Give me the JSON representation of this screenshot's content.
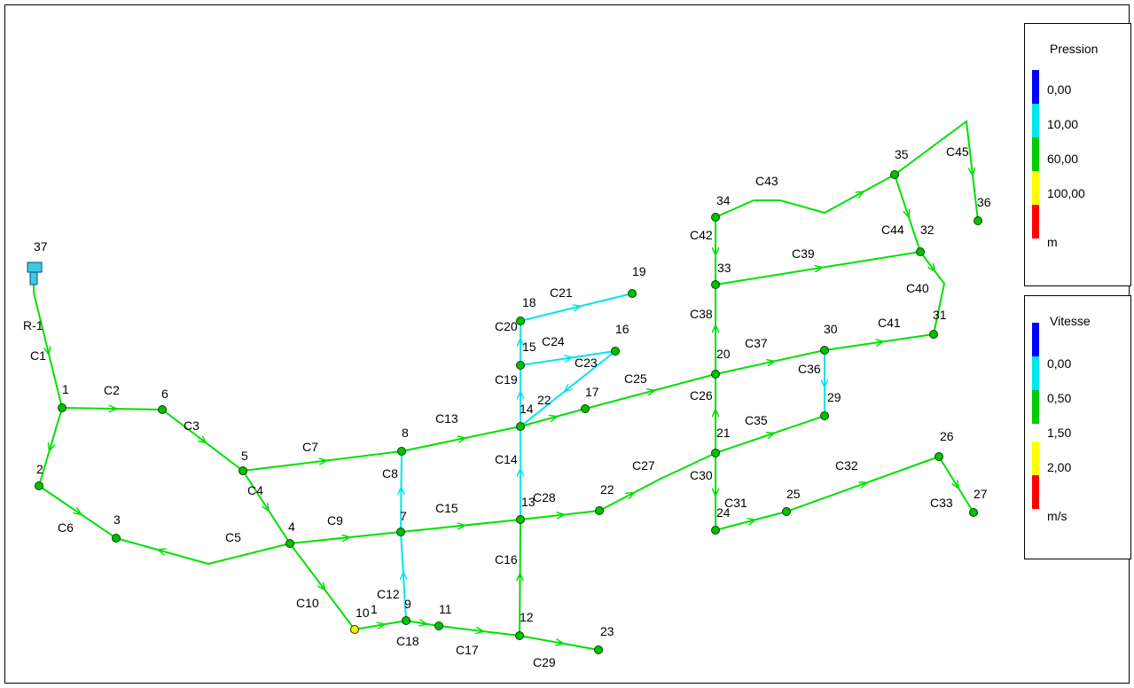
{
  "colors": {
    "pipe_default": "#00e000",
    "pipe_low": "#00e5ee",
    "node_green": "#00c000",
    "node_yellow": "#ffee00",
    "reservoir": "#40c8e8",
    "outline": "#004000"
  },
  "legend_pressure": {
    "title": "Pression",
    "items": [
      {
        "label": "0,00",
        "color": "#0000ff"
      },
      {
        "label": "10,00",
        "color": "#00e5ee"
      },
      {
        "label": "60,00",
        "color": "#00cc00"
      },
      {
        "label": "100,00",
        "color": "#ffff00"
      },
      {
        "label": "m",
        "color": "#ff0000"
      }
    ]
  },
  "legend_velocity": {
    "title": "Vitesse",
    "items": [
      {
        "label": "0,00",
        "color": "#0000ff"
      },
      {
        "label": "0,50",
        "color": "#00e5ee"
      },
      {
        "label": "1,50",
        "color": "#00cc00"
      },
      {
        "label": "2,00",
        "color": "#ffff00"
      },
      {
        "label": "m/s",
        "color": "#ff0000"
      }
    ]
  },
  "network": {
    "reservoir": {
      "id": "37"
    },
    "nodes": [
      {
        "id": "1"
      },
      {
        "id": "2"
      },
      {
        "id": "3"
      },
      {
        "id": "4"
      },
      {
        "id": "5"
      },
      {
        "id": "6"
      },
      {
        "id": "7"
      },
      {
        "id": "8"
      },
      {
        "id": "9"
      },
      {
        "id": "10"
      },
      {
        "id": "11"
      },
      {
        "id": "12"
      },
      {
        "id": "13"
      },
      {
        "id": "14"
      },
      {
        "id": "15"
      },
      {
        "id": "16"
      },
      {
        "id": "17"
      },
      {
        "id": "18"
      },
      {
        "id": "19"
      },
      {
        "id": "20"
      },
      {
        "id": "21"
      },
      {
        "id": "22"
      },
      {
        "id": "23"
      },
      {
        "id": "24"
      },
      {
        "id": "25"
      },
      {
        "id": "26"
      },
      {
        "id": "27"
      },
      {
        "id": "29"
      },
      {
        "id": "30"
      },
      {
        "id": "31"
      },
      {
        "id": "32"
      },
      {
        "id": "33"
      },
      {
        "id": "34"
      },
      {
        "id": "35"
      },
      {
        "id": "36"
      }
    ],
    "pipe_labels": [
      "R-1",
      "C1",
      "C2",
      "C3",
      "C4",
      "C5",
      "C6",
      "C7",
      "C8",
      "C9",
      "C10",
      "C12",
      "C13",
      "C14",
      "C15",
      "C16",
      "C17",
      "C18",
      "C19",
      "C20",
      "C21",
      "C23",
      "C24",
      "C25",
      "C26",
      "C27",
      "C28",
      "C29",
      "C30",
      "C31",
      "C32",
      "C33",
      "C35",
      "C36",
      "C37",
      "C38",
      "C39",
      "C40",
      "C41",
      "C42",
      "C43",
      "C44",
      "C45"
    ],
    "extra_labels": [
      "1",
      "22"
    ]
  }
}
